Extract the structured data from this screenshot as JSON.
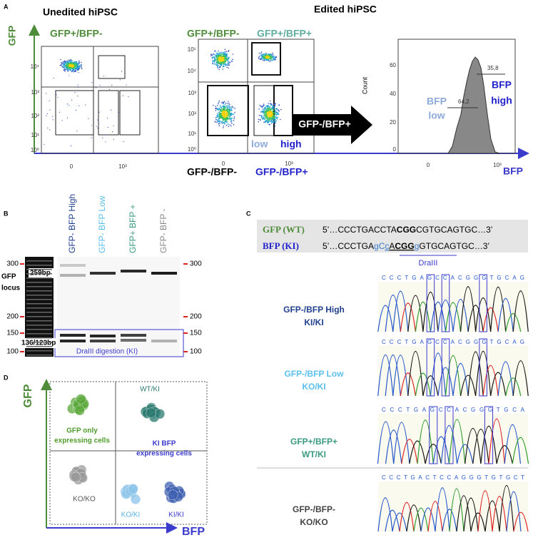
{
  "panel_a": {
    "letter": "A",
    "unedited_title": "Unedited hiPSC",
    "edited_title": "Edited hiPSC",
    "y_axis_label": "GFP",
    "x_axis_label": "BFP",
    "plot1": {
      "quadrant_label": "GFP+/BFP-",
      "yticks": [
        "10⁴",
        "10³",
        "10²",
        "10¹",
        "10⁰"
      ],
      "xticks": [
        "0",
        "10³"
      ]
    },
    "plot2": {
      "top_left": "GFP+/BFP-",
      "top_right": "GFP+/BFP+",
      "bottom_left": "GFP-/BFP-",
      "bottom_right": "GFP-/BFP+",
      "low": "low",
      "high": "high",
      "yticks": [
        "10⁵",
        "10⁴",
        "10³",
        "10²",
        "10¹",
        "10⁰"
      ],
      "xticks": [
        "0",
        "10³"
      ]
    },
    "arrow_label": "GFP-/BFP+",
    "histogram": {
      "y_label": "Count",
      "yticks": [
        "60",
        "40",
        "20",
        "0"
      ],
      "xticks": [
        "0",
        "10³"
      ],
      "low_pct": "64,2",
      "high_pct": "35,8",
      "low_label": [
        "BFP",
        "low"
      ],
      "high_label": [
        "BFP",
        "high"
      ]
    }
  },
  "panel_b": {
    "letter": "B",
    "lanes": [
      "GFP- BFP High",
      "GFP- BFP Low",
      "GFP+ BFP +",
      "GFP- BFP -"
    ],
    "markers_left": [
      "300",
      "200",
      "150",
      "100"
    ],
    "markers_right": [
      "300",
      "200",
      "150",
      "100"
    ],
    "locus_label": [
      "GFP",
      "locus"
    ],
    "band_upper": "259bp",
    "band_lower": "136/123bp",
    "digestion": "DraIII digestion (KI)"
  },
  "panel_c": {
    "letter": "C",
    "gfp_name": "GFP (WT)",
    "gfp_seq": [
      "5’…CCCTGACCTA",
      "CGG",
      "CGTGCAGTGC…3’"
    ],
    "bfp_name": "BFP (KI)",
    "bfp_seq": [
      "5’…CCCTGA",
      "gC",
      "c",
      "A",
      "CGG",
      "g",
      "GTGCAGTGC…3’"
    ],
    "site": "DraIII",
    "rows": [
      {
        "name": "GFP-/BFP High",
        "genotype": "KI/KI",
        "bases": "CCCTGAGCCACGGGTGCAG"
      },
      {
        "name": "GFP-/BFP Low",
        "genotype": "KO/KI",
        "bases": "CCCTGAGCCACGGGTGCAG"
      },
      {
        "name": "GFP+/BFP+",
        "genotype": "WT/KI",
        "bases": "CCCTGAGCCACGGGTGCA"
      },
      {
        "name": "GFP-/BFP-",
        "genotype": "KO/KO",
        "bases": "CCCTGACTCCAGGGTGTGCT"
      }
    ]
  },
  "panel_d": {
    "letter": "D",
    "y_axis_label": "GFP",
    "x_axis_label": "BFP",
    "gfp_only": [
      "GFP only",
      "expressing cells"
    ],
    "wt_ki": "WT/KI",
    "ki_bfp": [
      "KI BFP",
      "expressing cells"
    ],
    "ko_ko": "KO/KO",
    "ko_ki": "KO/KI",
    "ki_ki": "KI/KI"
  }
}
